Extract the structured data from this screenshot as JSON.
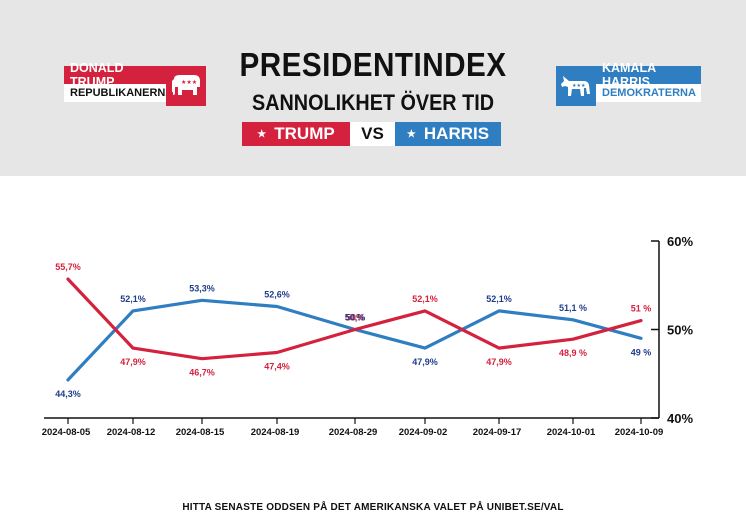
{
  "header": {
    "title": "PRESIDENTINDEX",
    "subtitle": "SANNOLIKHET ÖVER TID",
    "left_name": "TRUMP",
    "vs": "VS",
    "right_name": "HARRIS"
  },
  "candidates": {
    "left": {
      "name": "DONALD TRUMP",
      "party": "REPUBLIKANERNA",
      "icon": "elephant-icon"
    },
    "right": {
      "name": "KAMALA HARRIS",
      "party": "DEMOKRATERNA",
      "icon": "donkey-icon"
    }
  },
  "colors": {
    "red": "#d4213d",
    "blue": "#2f7ec1",
    "blue_label": "#1f3d8a"
  },
  "footer": "HITTA SENASTE ODDSEN PÅ DET AMERIKANSKA VALET PÅ UNIBET.SE/VAL",
  "chart_data": {
    "type": "line",
    "x": [
      "2024-08-05",
      "2024-08-12",
      "2024-08-15",
      "2024-08-19",
      "2024-08-29",
      "2024-09-02",
      "2024-09-17",
      "2024-10-01",
      "2024-10-09"
    ],
    "series": [
      {
        "name": "TRUMP",
        "color": "#d4213d",
        "values": [
          55.7,
          47.9,
          46.7,
          47.4,
          50,
          52.1,
          47.9,
          48.9,
          51
        ],
        "labels": [
          "55,7%",
          "47,9%",
          "46,7%",
          "47,4%",
          "50%",
          "52,1%",
          "47,9%",
          "48,9 %",
          "51 %"
        ]
      },
      {
        "name": "HARRIS",
        "color": "#2f7ec1",
        "values": [
          44.3,
          52.1,
          53.3,
          52.6,
          50,
          47.9,
          52.1,
          51.1,
          49
        ],
        "labels": [
          "44,3%",
          "52,1%",
          "53,3%",
          "52,6%",
          "50,%",
          "47,9%",
          "52,1%",
          "51,1 %",
          "49 %"
        ]
      }
    ],
    "yticks": [
      "60%",
      "50%",
      "40%"
    ],
    "ylim": [
      40,
      60
    ],
    "y_axis_side": "right",
    "grid": false
  }
}
